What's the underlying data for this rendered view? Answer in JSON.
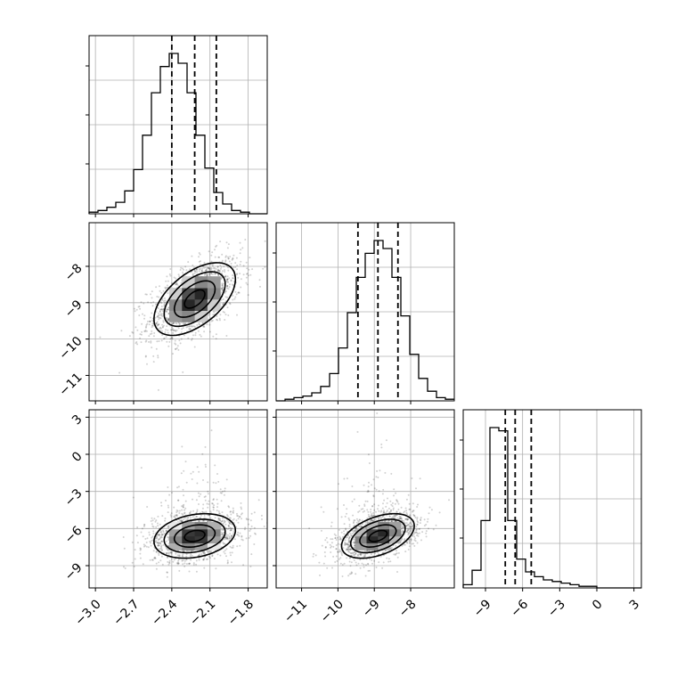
{
  "chart_data": {
    "type": "corner",
    "params": [
      {
        "range": [
          -3.05,
          -1.65
        ],
        "ticks": [
          -3.0,
          -2.7,
          -2.4,
          -2.1,
          -1.8
        ],
        "tick_labels": [
          "−3.0",
          "−2.7",
          "−2.4",
          "−2.1",
          "−1.8"
        ],
        "mean": -2.22,
        "sd": 0.16,
        "quantiles": [
          -2.4,
          -2.22,
          -2.05
        ]
      },
      {
        "range": [
          -11.7,
          -6.8
        ],
        "ticks": [
          -11,
          -10,
          -9,
          -8
        ],
        "tick_labels": [
          "−11",
          "−10",
          "−9",
          "−8"
        ],
        "mean": -8.9,
        "sd": 0.5,
        "quantiles": [
          -9.45,
          -8.9,
          -8.35
        ]
      },
      {
        "range": [
          -10.8,
          3.6
        ],
        "ticks": [
          -9,
          -6,
          -3,
          0,
          3
        ],
        "tick_labels": [
          "−9",
          "−6",
          "−3",
          "0",
          "3"
        ],
        "mean": -6.6,
        "sd": 0.9,
        "quantiles": [
          -7.4,
          -6.6,
          -5.3
        ]
      }
    ],
    "correlations": {
      "1_0": 0.55,
      "2_0": 0.25,
      "2_1": 0.45
    },
    "histograms": [
      {
        "edges_start": -3.05,
        "bin_width": 0.07,
        "counts": [
          1,
          2,
          4,
          7,
          14,
          27,
          48,
          74,
          90,
          98,
          92,
          74,
          48,
          28,
          13,
          6,
          2,
          1,
          0,
          0
        ]
      },
      {
        "edges_start": -11.7,
        "bin_width": 0.245,
        "counts": [
          0,
          1,
          2,
          3,
          5,
          9,
          17,
          33,
          55,
          77,
          92,
          100,
          95,
          77,
          53,
          29,
          14,
          6,
          2,
          1
        ]
      },
      {
        "edges_start": -10.8,
        "bin_width": 0.72,
        "counts": [
          2,
          11,
          42,
          100,
          98,
          42,
          18,
          10,
          7,
          5,
          4,
          3,
          2,
          1,
          1,
          0,
          0,
          0,
          0,
          0
        ]
      }
    ],
    "grid": true,
    "legend": "none"
  }
}
